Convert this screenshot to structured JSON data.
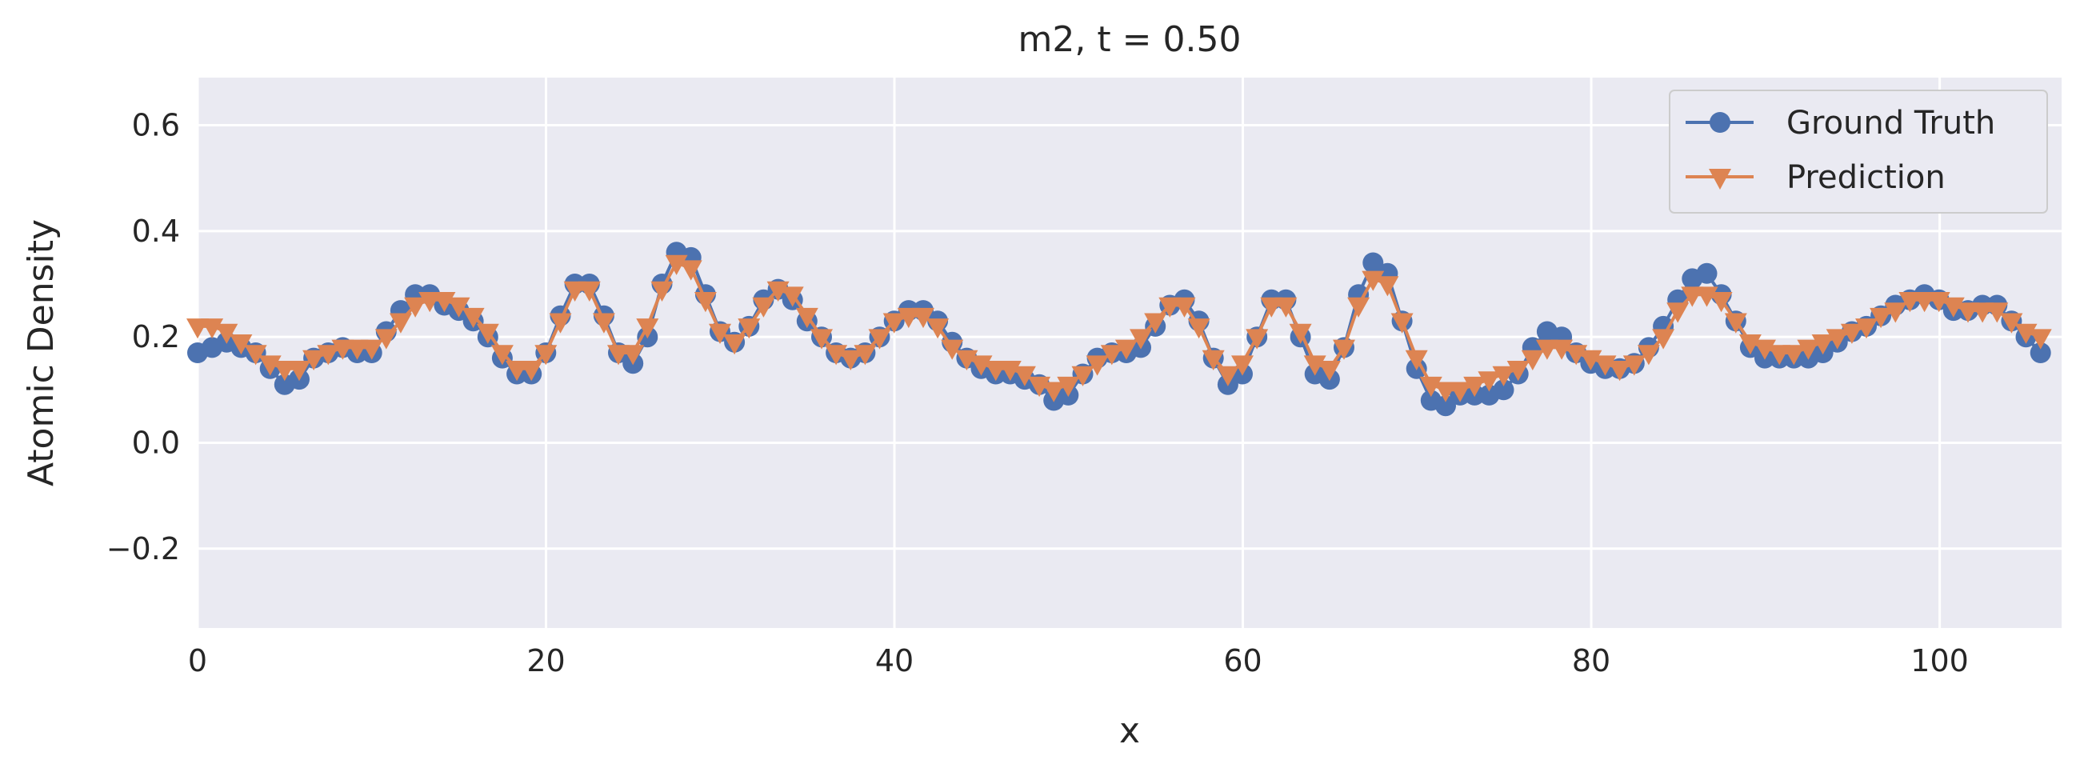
{
  "chart_data": {
    "type": "line",
    "title": "m2, t = 0.50",
    "xlabel": "x",
    "ylabel": "Atomic Density",
    "xlim": [
      0,
      107
    ],
    "ylim": [
      -0.35,
      0.69
    ],
    "xticks": [
      0,
      20,
      40,
      60,
      80,
      100
    ],
    "yticks": [
      -0.2,
      0.0,
      0.2,
      0.4,
      0.6
    ],
    "ytick_labels": [
      "−0.2",
      "0.0",
      "0.2",
      "0.4",
      "0.6"
    ],
    "grid": true,
    "background": "#eaeaf2",
    "legend_position": "top-right",
    "x_step": 0.833,
    "series": [
      {
        "name": "Ground Truth",
        "color": "#4c72b0",
        "marker": "circle",
        "values": [
          0.17,
          0.18,
          0.19,
          0.18,
          0.17,
          0.14,
          0.11,
          0.12,
          0.16,
          0.17,
          0.18,
          0.17,
          0.17,
          0.21,
          0.25,
          0.28,
          0.28,
          0.26,
          0.25,
          0.23,
          0.2,
          0.16,
          0.13,
          0.13,
          0.17,
          0.24,
          0.3,
          0.3,
          0.24,
          0.17,
          0.15,
          0.2,
          0.3,
          0.36,
          0.35,
          0.28,
          0.21,
          0.19,
          0.22,
          0.27,
          0.29,
          0.27,
          0.23,
          0.2,
          0.17,
          0.16,
          0.17,
          0.2,
          0.23,
          0.25,
          0.25,
          0.23,
          0.19,
          0.16,
          0.14,
          0.13,
          0.13,
          0.12,
          0.11,
          0.08,
          0.09,
          0.13,
          0.16,
          0.17,
          0.17,
          0.18,
          0.22,
          0.26,
          0.27,
          0.23,
          0.16,
          0.11,
          0.13,
          0.2,
          0.27,
          0.27,
          0.2,
          0.13,
          0.12,
          0.18,
          0.28,
          0.34,
          0.32,
          0.23,
          0.14,
          0.08,
          0.07,
          0.09,
          0.09,
          0.09,
          0.1,
          0.13,
          0.18,
          0.21,
          0.2,
          0.17,
          0.15,
          0.14,
          0.14,
          0.15,
          0.18,
          0.22,
          0.27,
          0.31,
          0.32,
          0.28,
          0.23,
          0.18,
          0.16,
          0.16,
          0.16,
          0.16,
          0.17,
          0.19,
          0.21,
          0.22,
          0.24,
          0.26,
          0.27,
          0.28,
          0.27,
          0.25,
          0.25,
          0.26,
          0.26,
          0.23,
          0.2,
          0.17
        ]
      },
      {
        "name": "Prediction",
        "color": "#dd8452",
        "marker": "triangle-down",
        "values": [
          0.22,
          0.22,
          0.21,
          0.19,
          0.17,
          0.15,
          0.14,
          0.14,
          0.16,
          0.17,
          0.18,
          0.18,
          0.18,
          0.2,
          0.23,
          0.26,
          0.27,
          0.27,
          0.26,
          0.24,
          0.21,
          0.17,
          0.14,
          0.14,
          0.17,
          0.23,
          0.29,
          0.29,
          0.23,
          0.17,
          0.17,
          0.22,
          0.29,
          0.34,
          0.33,
          0.27,
          0.21,
          0.19,
          0.22,
          0.26,
          0.29,
          0.28,
          0.24,
          0.2,
          0.17,
          0.16,
          0.17,
          0.2,
          0.23,
          0.24,
          0.24,
          0.22,
          0.18,
          0.16,
          0.15,
          0.14,
          0.14,
          0.13,
          0.11,
          0.1,
          0.11,
          0.13,
          0.15,
          0.17,
          0.18,
          0.2,
          0.23,
          0.26,
          0.26,
          0.22,
          0.16,
          0.13,
          0.15,
          0.2,
          0.26,
          0.26,
          0.21,
          0.15,
          0.14,
          0.18,
          0.26,
          0.31,
          0.3,
          0.23,
          0.16,
          0.11,
          0.1,
          0.1,
          0.11,
          0.12,
          0.13,
          0.14,
          0.16,
          0.18,
          0.18,
          0.17,
          0.16,
          0.15,
          0.14,
          0.15,
          0.17,
          0.2,
          0.25,
          0.28,
          0.28,
          0.27,
          0.23,
          0.19,
          0.18,
          0.17,
          0.17,
          0.18,
          0.19,
          0.2,
          0.21,
          0.22,
          0.24,
          0.25,
          0.27,
          0.27,
          0.27,
          0.26,
          0.25,
          0.25,
          0.25,
          0.23,
          0.21,
          0.2
        ]
      }
    ]
  }
}
